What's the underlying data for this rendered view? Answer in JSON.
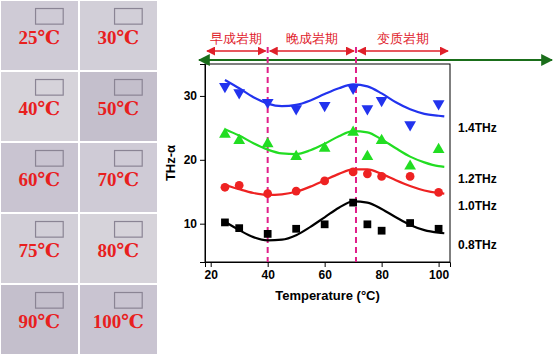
{
  "micrographs": {
    "labels": [
      "25℃",
      "30℃",
      "40℃",
      "50℃",
      "60℃",
      "70℃",
      "75℃",
      "80℃",
      "90℃",
      "100℃"
    ]
  },
  "chart_data": {
    "type": "scatter",
    "x_label": "Temperature (°C)",
    "y_label": "THz-α",
    "xlim": [
      18,
      104
    ],
    "xticks": [
      20,
      40,
      60,
      80,
      100
    ],
    "ylim": [
      4,
      35
    ],
    "yticks": [
      10,
      20,
      30
    ],
    "boundaries": [
      40,
      71
    ],
    "periods": [
      {
        "label": "早成岩期",
        "from": 18,
        "to": 40
      },
      {
        "label": "晚成岩期",
        "from": 40,
        "to": 71
      },
      {
        "label": "变质岩期",
        "from": 71,
        "to": 104
      }
    ],
    "series": [
      {
        "name": "1.4THz",
        "color": "#2233ee",
        "marker": "triangle-down",
        "x": [
          25,
          30,
          40,
          50,
          60,
          70,
          75,
          80,
          90,
          100
        ],
        "values": [
          31.5,
          30.5,
          29.0,
          28.0,
          28.5,
          31.2,
          28.0,
          29.3,
          25.5,
          28.8
        ],
        "fit": {
          "x": [
            25,
            30,
            35,
            40,
            45,
            50,
            55,
            60,
            65,
            70,
            75,
            80,
            85,
            90,
            95,
            100,
            102
          ],
          "values": [
            32.5,
            31.2,
            29.8,
            28.8,
            28.4,
            28.6,
            29.3,
            30.3,
            31.2,
            31.8,
            31.5,
            30.4,
            29.0,
            27.9,
            27.2,
            26.9,
            26.8
          ]
        }
      },
      {
        "name": "1.2THz",
        "color": "#22dd22",
        "marker": "triangle-up",
        "x": [
          25,
          30,
          40,
          50,
          60,
          70,
          75,
          80,
          90,
          100
        ],
        "values": [
          24.0,
          23.0,
          22.5,
          20.5,
          21.8,
          24.3,
          20.5,
          23.0,
          19.0,
          21.6
        ],
        "fit": {
          "x": [
            25,
            30,
            35,
            40,
            45,
            50,
            55,
            60,
            65,
            70,
            75,
            80,
            85,
            90,
            95,
            100,
            102
          ],
          "values": [
            24.8,
            23.8,
            22.6,
            21.6,
            21.0,
            20.9,
            21.5,
            22.5,
            23.7,
            24.5,
            24.3,
            23.2,
            21.8,
            20.5,
            19.6,
            19.0,
            18.9
          ]
        }
      },
      {
        "name": "1.0THz",
        "color": "#ee2222",
        "marker": "circle",
        "x": [
          25,
          30,
          40,
          50,
          60,
          70,
          75,
          80,
          90,
          100
        ],
        "values": [
          15.7,
          16.0,
          14.7,
          15.1,
          16.7,
          18.1,
          17.8,
          17.4,
          17.4,
          14.9
        ],
        "fit": {
          "x": [
            25,
            30,
            35,
            40,
            45,
            50,
            55,
            60,
            65,
            70,
            75,
            80,
            85,
            90,
            95,
            100,
            102
          ],
          "values": [
            16.1,
            15.4,
            14.8,
            14.5,
            14.6,
            15.0,
            15.8,
            16.8,
            17.8,
            18.5,
            18.5,
            17.8,
            16.8,
            15.9,
            15.2,
            14.8,
            14.7
          ]
        }
      },
      {
        "name": "0.8THz",
        "color": "#000000",
        "marker": "square",
        "x": [
          25,
          30,
          40,
          50,
          60,
          70,
          75,
          80,
          90,
          100
        ],
        "values": [
          10.2,
          9.3,
          8.4,
          9.2,
          9.9,
          13.3,
          9.9,
          8.9,
          10.1,
          9.2
        ],
        "fit": {
          "x": [
            25,
            30,
            35,
            40,
            45,
            50,
            55,
            60,
            65,
            70,
            75,
            80,
            85,
            90,
            95,
            100,
            102
          ],
          "values": [
            10.3,
            9.0,
            7.9,
            7.4,
            7.5,
            8.2,
            9.5,
            11.0,
            12.5,
            13.5,
            13.3,
            12.3,
            11.0,
            9.8,
            9.0,
            8.6,
            8.5
          ]
        }
      }
    ]
  }
}
